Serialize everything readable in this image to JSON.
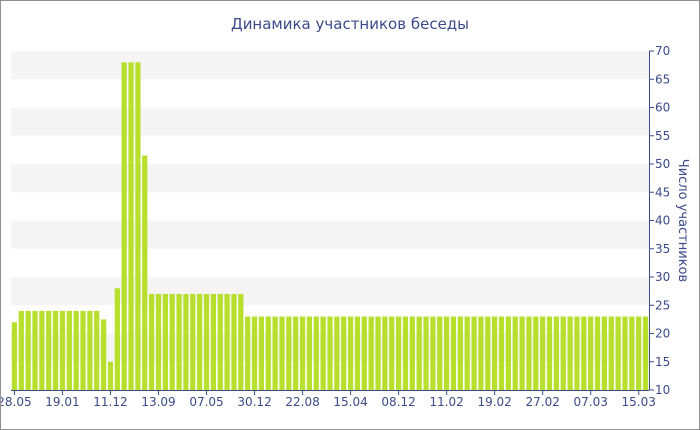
{
  "chart_data": {
    "type": "bar",
    "title": "Динамика участников беседы",
    "xlabel": "",
    "ylabel": "Число участников",
    "ylim": [
      10,
      70
    ],
    "yticks": [
      10,
      15,
      20,
      25,
      30,
      35,
      40,
      45,
      50,
      55,
      60,
      65,
      70
    ],
    "y_axis_position": "right",
    "grid": "horizontal bands",
    "bar_color": "#b7df2c",
    "band_color": "#f5f5f5",
    "axis_color": "#3b4a8a",
    "xtick_labels": [
      {
        "label": "28.05",
        "index": 0
      },
      {
        "label": "19.01",
        "index": 7
      },
      {
        "label": "11.12",
        "index": 14
      },
      {
        "label": "13.09",
        "index": 21
      },
      {
        "label": "07.05",
        "index": 28
      },
      {
        "label": "30.12",
        "index": 35
      },
      {
        "label": "22.08",
        "index": 42
      },
      {
        "label": "15.04",
        "index": 49
      },
      {
        "label": "08.12",
        "index": 56
      },
      {
        "label": "11.02",
        "index": 63
      },
      {
        "label": "19.02",
        "index": 70
      },
      {
        "label": "27.02",
        "index": 77
      },
      {
        "label": "07.03",
        "index": 84
      },
      {
        "label": "15.03",
        "index": 91
      }
    ],
    "values": [
      22,
      24,
      24,
      24,
      24,
      24,
      24,
      24,
      24,
      24,
      24,
      24,
      24,
      22.5,
      15,
      28,
      68,
      68,
      68,
      51.5,
      27,
      27,
      27,
      27,
      27,
      27,
      27,
      27,
      27,
      27,
      27,
      27,
      27,
      27,
      23,
      23,
      23,
      23,
      23,
      23,
      23,
      23,
      23,
      23,
      23,
      23,
      23,
      23,
      23,
      23,
      23,
      23,
      23,
      23,
      23,
      23,
      23,
      23,
      23,
      23,
      23,
      23,
      23,
      23,
      23,
      23,
      23,
      23,
      23,
      23,
      23,
      23,
      23,
      23,
      23,
      23,
      23,
      23,
      23,
      23,
      23,
      23,
      23,
      23,
      23,
      23,
      23,
      23,
      23,
      23,
      23,
      23,
      23
    ]
  }
}
